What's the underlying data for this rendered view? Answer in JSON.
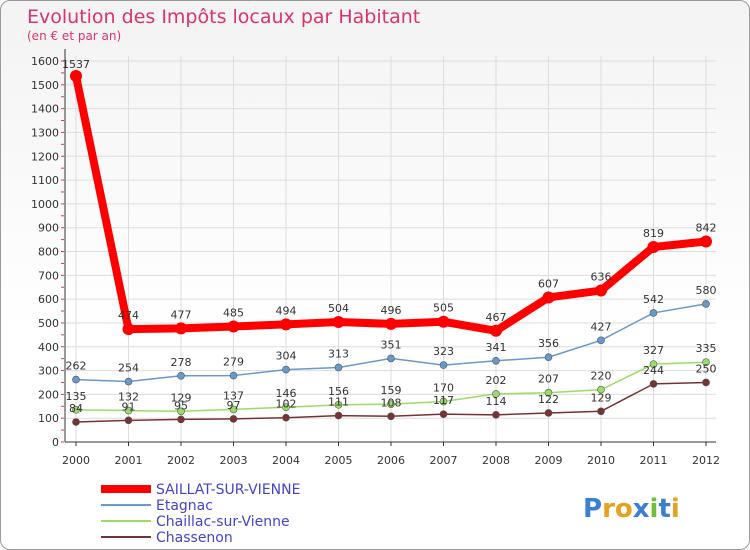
{
  "chart_data": {
    "type": "line",
    "title": "Evolution des Impôts locaux par Habitant",
    "subtitle": "(en € et par an)",
    "categories": [
      "2000",
      "2001",
      "2002",
      "2003",
      "2004",
      "2005",
      "2006",
      "2007",
      "2008",
      "2009",
      "2010",
      "2011",
      "2012"
    ],
    "ylim": [
      0,
      1600
    ],
    "yticks": [
      0,
      100,
      200,
      300,
      400,
      500,
      600,
      700,
      800,
      900,
      1000,
      1100,
      1200,
      1300,
      1400,
      1500,
      1600
    ],
    "series": [
      {
        "name": "SAILLAT-SUR-VIENNE",
        "color": "#ff0000",
        "values": [
          1537,
          474,
          477,
          485,
          494,
          504,
          496,
          505,
          467,
          607,
          636,
          819,
          842
        ]
      },
      {
        "name": "Etagnac",
        "color": "#6699cc",
        "values": [
          262,
          254,
          278,
          279,
          304,
          313,
          351,
          323,
          341,
          356,
          427,
          542,
          580
        ]
      },
      {
        "name": "Chaillac-sur-Vienne",
        "color": "#99dd66",
        "values": [
          135,
          132,
          129,
          137,
          146,
          156,
          159,
          170,
          202,
          207,
          220,
          327,
          335
        ]
      },
      {
        "name": "Chassenon",
        "color": "#773333",
        "values": [
          84,
          91,
          95,
          97,
          102,
          111,
          108,
          117,
          114,
          122,
          129,
          244,
          250
        ]
      }
    ]
  },
  "logo": {
    "text": "Proxiti",
    "letters": [
      {
        "ch": "P",
        "color": "#3b7fd4"
      },
      {
        "ch": "r",
        "color": "#e8a020"
      },
      {
        "ch": "o",
        "color": "#e8a020"
      },
      {
        "ch": "x",
        "color": "#3b7fd4"
      },
      {
        "ch": "i",
        "color": "#6fbf3a"
      },
      {
        "ch": "t",
        "color": "#3b7fd4"
      },
      {
        "ch": "i",
        "color": "#e8a020"
      }
    ]
  }
}
